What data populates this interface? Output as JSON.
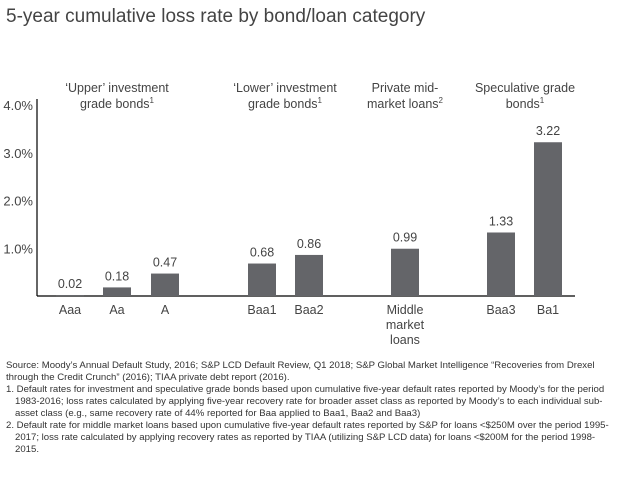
{
  "chart_data": {
    "type": "bar",
    "title": "5-year cumulative loss rate by bond/loan category",
    "ylim": [
      0,
      4.0
    ],
    "yticks": [
      "1.0%",
      "2.0%",
      "3.0%",
      "4.0%"
    ],
    "ytick_values": [
      1,
      2,
      3,
      4
    ],
    "grid": false,
    "bar_color": "#646569",
    "groups": [
      {
        "label": "‘Upper’ investment grade bonds",
        "sup": "1",
        "categories": [
          "Aaa",
          "Aa",
          "A"
        ],
        "values": [
          0.02,
          0.18,
          0.47
        ],
        "data_labels": [
          "0.02",
          "0.18",
          "0.47"
        ]
      },
      {
        "label": "‘Lower’ investment grade bonds",
        "sup": "1",
        "categories": [
          "Baa1",
          "Baa2"
        ],
        "values": [
          0.68,
          0.86
        ],
        "data_labels": [
          "0.68",
          "0.86"
        ]
      },
      {
        "label": "Private mid-market loans",
        "sup": "2",
        "categories": [
          "Middle market loans"
        ],
        "values": [
          0.99
        ],
        "data_labels": [
          "0.99"
        ]
      },
      {
        "label": "Speculative grade bonds",
        "sup": "1",
        "categories": [
          "Baa3",
          "Ba1"
        ],
        "values": [
          1.33,
          3.22
        ],
        "data_labels": [
          "1.33",
          "3.22"
        ]
      }
    ]
  },
  "notes": {
    "source": "Source: Moody’s Annual Default Study, 2016; S&P LCD Default Review, Q1 2018; S&P Global Market Intelligence “Recoveries from Drexel through the Credit Crunch” (2016); TIAA private debt report (2016).",
    "note1": "1. Default rates for investment and speculative grade bonds based upon cumulative five-year default rates reported by Moody’s for the period 1983-2016; loss rates calculated by applying five-year recovery rate for broader asset class as reported by Moody’s to each individual sub-asset class (e.g., same recovery rate of 44% reported for Baa applied to Baa1, Baa2 and Baa3)",
    "note2": "2. Default rate for middle market loans based upon cumulative five-year default rates reported by S&P for loans <$250M over the period 1995-2017; loss rate calculated by applying recovery rates as reported by TIAA (utilizing S&P LCD data) for loans <$200M for the period 1998-2015."
  }
}
